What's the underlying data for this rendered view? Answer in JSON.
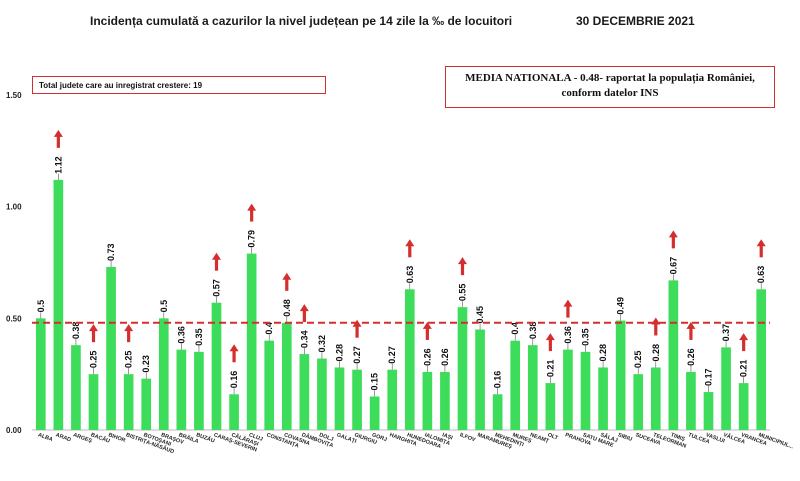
{
  "header": {
    "title": "Incidența cumulată a cazurilor la nivel județean pe 14 zile la ‰ de locuitori",
    "date": "30 DECEMBRIE 2021"
  },
  "info_box": {
    "text": "Total judete care au inregistrat crestere: 19"
  },
  "national_box": {
    "line1": "MEDIA NATIONALA - 0.48-  raportat la populația României,",
    "line2": "conform datelor INS"
  },
  "colors": {
    "bar": "#3ddc5a",
    "average_line": "#d32f2f",
    "arrow": "#d32f2f",
    "box_border": "#d32f2f"
  },
  "chart_data": {
    "type": "bar",
    "ylim": [
      0,
      1.5
    ],
    "y_ticks": [
      "0.00",
      "0.50",
      "1.00",
      "1.50"
    ],
    "reference_line": 0.48,
    "categories": [
      "ALBA",
      "ARAD",
      "ARGEȘ",
      "BACĂU",
      "BIHOR",
      "BISTRIȚA-NĂSĂUD",
      "BOTOȘANI",
      "BRAȘOV",
      "BRĂILA",
      "BUZĂU",
      "CARAȘ-SEVERIN",
      "CĂLĂRAȘI",
      "CLUJ",
      "CONSTANȚA",
      "COVASNA",
      "DÂMBOVIȚA",
      "DOLJ",
      "GALAȚI",
      "GIURGIU",
      "GORJ",
      "HARGHITA",
      "HUNEDOARA",
      "IALOMIȚA",
      "IAȘI",
      "ILFOV",
      "MARAMUREȘ",
      "MEHEDINȚI",
      "MUREȘ",
      "NEAMȚ",
      "OLT",
      "PRAHOVA",
      "SATU MARE",
      "SĂLAJ",
      "SIBIU",
      "SUCEAVA",
      "TELEORMAN",
      "TIMIȘ",
      "TULCEA",
      "VASLUI",
      "VÂLCEA",
      "VRANCEA",
      "MUNICIPIUL..."
    ],
    "values": [
      0.5,
      1.12,
      0.38,
      0.25,
      0.73,
      0.25,
      0.23,
      0.5,
      0.36,
      0.35,
      0.57,
      0.16,
      0.79,
      0.4,
      0.48,
      0.34,
      0.32,
      0.28,
      0.27,
      0.15,
      0.27,
      0.63,
      0.26,
      0.26,
      0.55,
      0.45,
      0.16,
      0.4,
      0.38,
      0.21,
      0.36,
      0.35,
      0.28,
      0.49,
      0.25,
      0.28,
      0.67,
      0.26,
      0.17,
      0.37,
      0.21,
      0.63
    ],
    "value_labels": [
      "0.5",
      "1.12",
      "0.38",
      "0.25",
      "0.73",
      "0.25",
      "0.23",
      "0.5",
      "0.36",
      "0.35",
      "0.57",
      "0.16",
      "0.79",
      "0.4",
      "0.48",
      "0.34",
      "0.32",
      "0.28",
      "0.27",
      "0.15",
      "0.27",
      "0.63",
      "0.26",
      "0.26",
      "0.55",
      "0.45",
      "0.16",
      "0.4",
      "0.38",
      "0.21",
      "0.36",
      "0.35",
      "0.28",
      "0.49",
      "0.25",
      "0.28",
      "0.67",
      "0.26",
      "0.17",
      "0.37",
      "0.21",
      "0.63"
    ],
    "increase_arrows": [
      false,
      true,
      false,
      true,
      false,
      true,
      false,
      false,
      false,
      false,
      true,
      true,
      true,
      false,
      true,
      true,
      false,
      false,
      true,
      false,
      false,
      true,
      true,
      false,
      true,
      false,
      false,
      false,
      false,
      true,
      true,
      false,
      false,
      false,
      false,
      true,
      true,
      true,
      false,
      false,
      true,
      true
    ]
  }
}
